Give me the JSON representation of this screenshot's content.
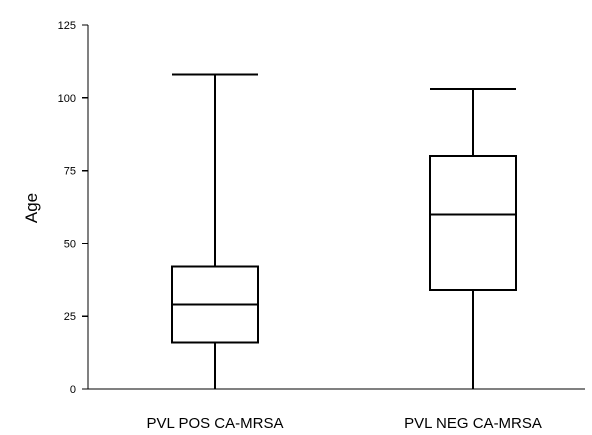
{
  "chart_data": {
    "type": "box",
    "ylabel": "Age",
    "xlabel": "",
    "ylim": [
      0,
      125
    ],
    "yticks": [
      "0",
      "25",
      "50",
      "75",
      "100",
      "125"
    ],
    "grid": false,
    "categories": [
      "PVL POS CA-MRSA",
      "PVL NEG CA-MRSA"
    ],
    "boxes": [
      {
        "category": "PVL POS CA-MRSA",
        "min": 0,
        "q1": 16,
        "median": 29,
        "q3": 42,
        "max": 108
      },
      {
        "category": "PVL NEG CA-MRSA",
        "min": 0,
        "q1": 34,
        "median": 60,
        "q3": 80,
        "max": 103
      }
    ]
  }
}
